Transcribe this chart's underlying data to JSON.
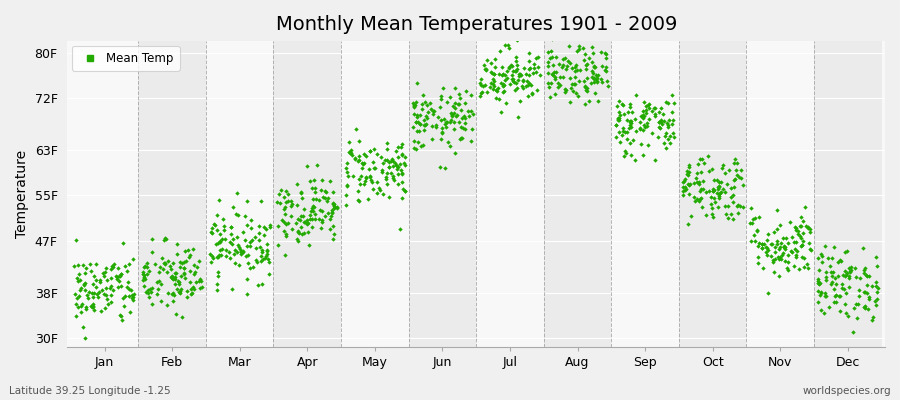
{
  "title": "Monthly Mean Temperatures 1901 - 2009",
  "ylabel": "Temperature",
  "subtitle_left": "Latitude 39.25 Longitude -1.25",
  "subtitle_right": "worldspecies.org",
  "legend_label": "Mean Temp",
  "yticks": [
    30,
    38,
    47,
    55,
    63,
    72,
    80
  ],
  "ytick_labels": [
    "30F",
    "38F",
    "47F",
    "55F",
    "63F",
    "72F",
    "80F"
  ],
  "ylim": [
    28.5,
    82
  ],
  "xlim": [
    -0.05,
    12.05
  ],
  "months": [
    "Jan",
    "Feb",
    "Mar",
    "Apr",
    "May",
    "Jun",
    "Jul",
    "Aug",
    "Sep",
    "Oct",
    "Nov",
    "Dec"
  ],
  "dot_color": "#22aa00",
  "bg_color": "#f0f0f0",
  "band_colors": [
    "#f8f8f8",
    "#ebebeb"
  ],
  "grid_color": "#cccccc",
  "dashed_color": "#888888",
  "n_years": 109,
  "mean_temps_F": [
    38.5,
    40.5,
    46.5,
    52.5,
    59.5,
    68.0,
    76.0,
    76.0,
    67.5,
    56.5,
    46.5,
    39.5
  ],
  "std_temps_F": [
    3.2,
    3.2,
    3.2,
    3.0,
    3.0,
    2.8,
    2.5,
    2.5,
    2.8,
    3.0,
    3.0,
    3.2
  ],
  "seed": 42,
  "dot_size": 5,
  "title_fontsize": 14,
  "axis_fontsize": 9,
  "ylabel_fontsize": 10
}
